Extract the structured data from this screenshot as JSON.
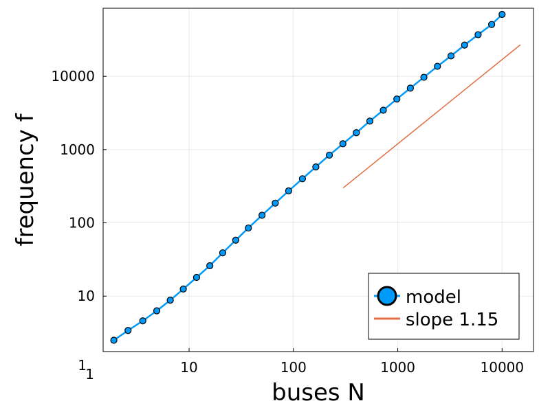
{
  "chart_data": {
    "type": "scatter",
    "xlabel": "buses N",
    "ylabel": "frequency f",
    "xscale": "log",
    "yscale": "log",
    "xlim": [
      1.5,
      20000
    ],
    "ylim": [
      1.75,
      85000
    ],
    "x_ticks": [
      "10",
      "100",
      "1000",
      "10000"
    ],
    "y_ticks": [
      "10",
      "100",
      "1000",
      "10000"
    ],
    "corner_labels": {
      "x_origin": "1",
      "y_origin": "1"
    },
    "grid": true,
    "legend_position": "bottom-right",
    "series": [
      {
        "name": "model",
        "style": "line+markers",
        "color": "#009AFA",
        "x": [
          1.9,
          2.6,
          3.6,
          4.9,
          6.6,
          8.8,
          11.8,
          15.8,
          21,
          28,
          37,
          50,
          67,
          90,
          122,
          164,
          221,
          298,
          401,
          540,
          727,
          980,
          1320,
          1780,
          2400,
          3240,
          4370,
          5890,
          7940,
          10000
        ],
        "y": [
          2.5,
          3.4,
          4.6,
          6.3,
          8.8,
          12.5,
          18,
          26,
          39,
          58,
          85,
          127,
          186,
          273,
          400,
          580,
          840,
          1200,
          1700,
          2450,
          3450,
          4900,
          6900,
          9700,
          13700,
          19000,
          26700,
          37000,
          51000,
          70000
        ]
      },
      {
        "name": "slope 1.15",
        "style": "line",
        "color": "#E26F46",
        "x": [
          300,
          15000
        ],
        "y": [
          300,
          27000
        ]
      }
    ]
  }
}
